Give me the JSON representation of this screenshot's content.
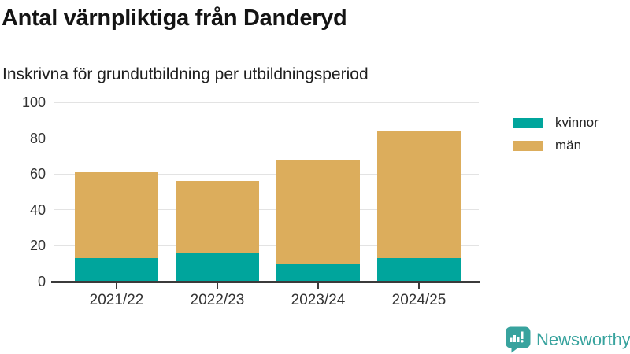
{
  "title": "Antal värnpliktiga från Danderyd",
  "subtitle": "Inskrivna för grundutbildning per utbildningsperiod",
  "chart_data": {
    "type": "bar",
    "stacked": true,
    "title": "Antal värnpliktiga från Danderyd",
    "subtitle": "Inskrivna för grundutbildning per utbildningsperiod",
    "categories": [
      "2021/22",
      "2022/23",
      "2023/24",
      "2024/25"
    ],
    "series": [
      {
        "name": "kvinnor",
        "color": "#00A59C",
        "values": [
          13,
          16,
          10,
          13
        ]
      },
      {
        "name": "män",
        "color": "#DCAD5C",
        "values": [
          48,
          40,
          58,
          71
        ]
      }
    ],
    "stack_totals": [
      61,
      56,
      68,
      84
    ],
    "xlabel": "",
    "ylabel": "",
    "ylim": [
      0,
      100
    ],
    "yticks": [
      0,
      20,
      40,
      60,
      80,
      100
    ],
    "grid": "horizontal",
    "legend_position": "right"
  },
  "legend": {
    "items": [
      {
        "label": "kvinnor",
        "color": "#00A59C"
      },
      {
        "label": "män",
        "color": "#DCAD5C"
      }
    ]
  },
  "branding": {
    "logo_text": "Newsworthy",
    "logo_icon": "bar-chart-speech-bubble-icon",
    "color": "#38A39E"
  },
  "colors": {
    "grid_line": "#E3E3E3",
    "axis_line": "#3B3B3B",
    "tick_text": "#333333",
    "title_text": "#141414"
  }
}
